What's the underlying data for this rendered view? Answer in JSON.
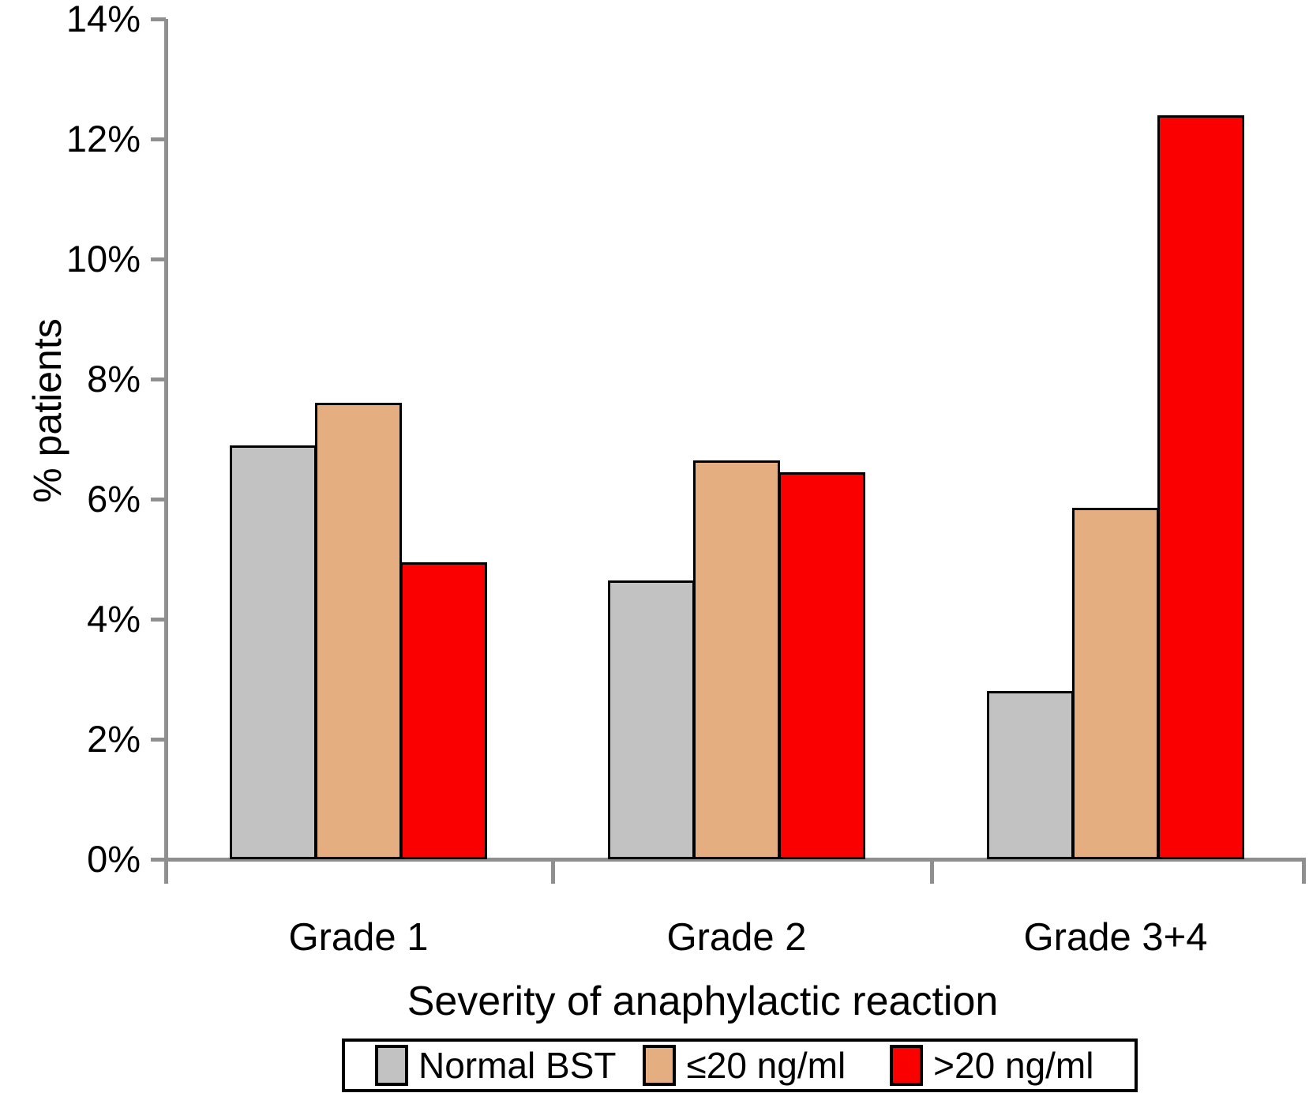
{
  "chart_data": {
    "type": "bar",
    "title": "",
    "categories": [
      "Grade 1",
      "Grade 2",
      "Grade 3+4"
    ],
    "series": [
      {
        "name": "Normal BST",
        "color": "#c2c2c2",
        "values": [
          6.9,
          4.65,
          2.8
        ]
      },
      {
        "name": "≤20 ng/ml",
        "color": "#e5ae80",
        "values": [
          7.6,
          6.65,
          5.85
        ]
      },
      {
        "name": ">20 ng/ml",
        "color": "#fb0000",
        "values": [
          4.95,
          6.45,
          12.4
        ]
      }
    ],
    "xlabel": "Severity of anaphylactic reaction",
    "ylabel": "% patients",
    "ylim": [
      0,
      14
    ],
    "ytick_step": 2,
    "yticks": [
      "0%",
      "2%",
      "4%",
      "6%",
      "8%",
      "10%",
      "12%",
      "14%"
    ],
    "grid": false,
    "legend_position": "bottom",
    "axis_color": "#8f8f8f",
    "bar_border_color": "#000000"
  }
}
